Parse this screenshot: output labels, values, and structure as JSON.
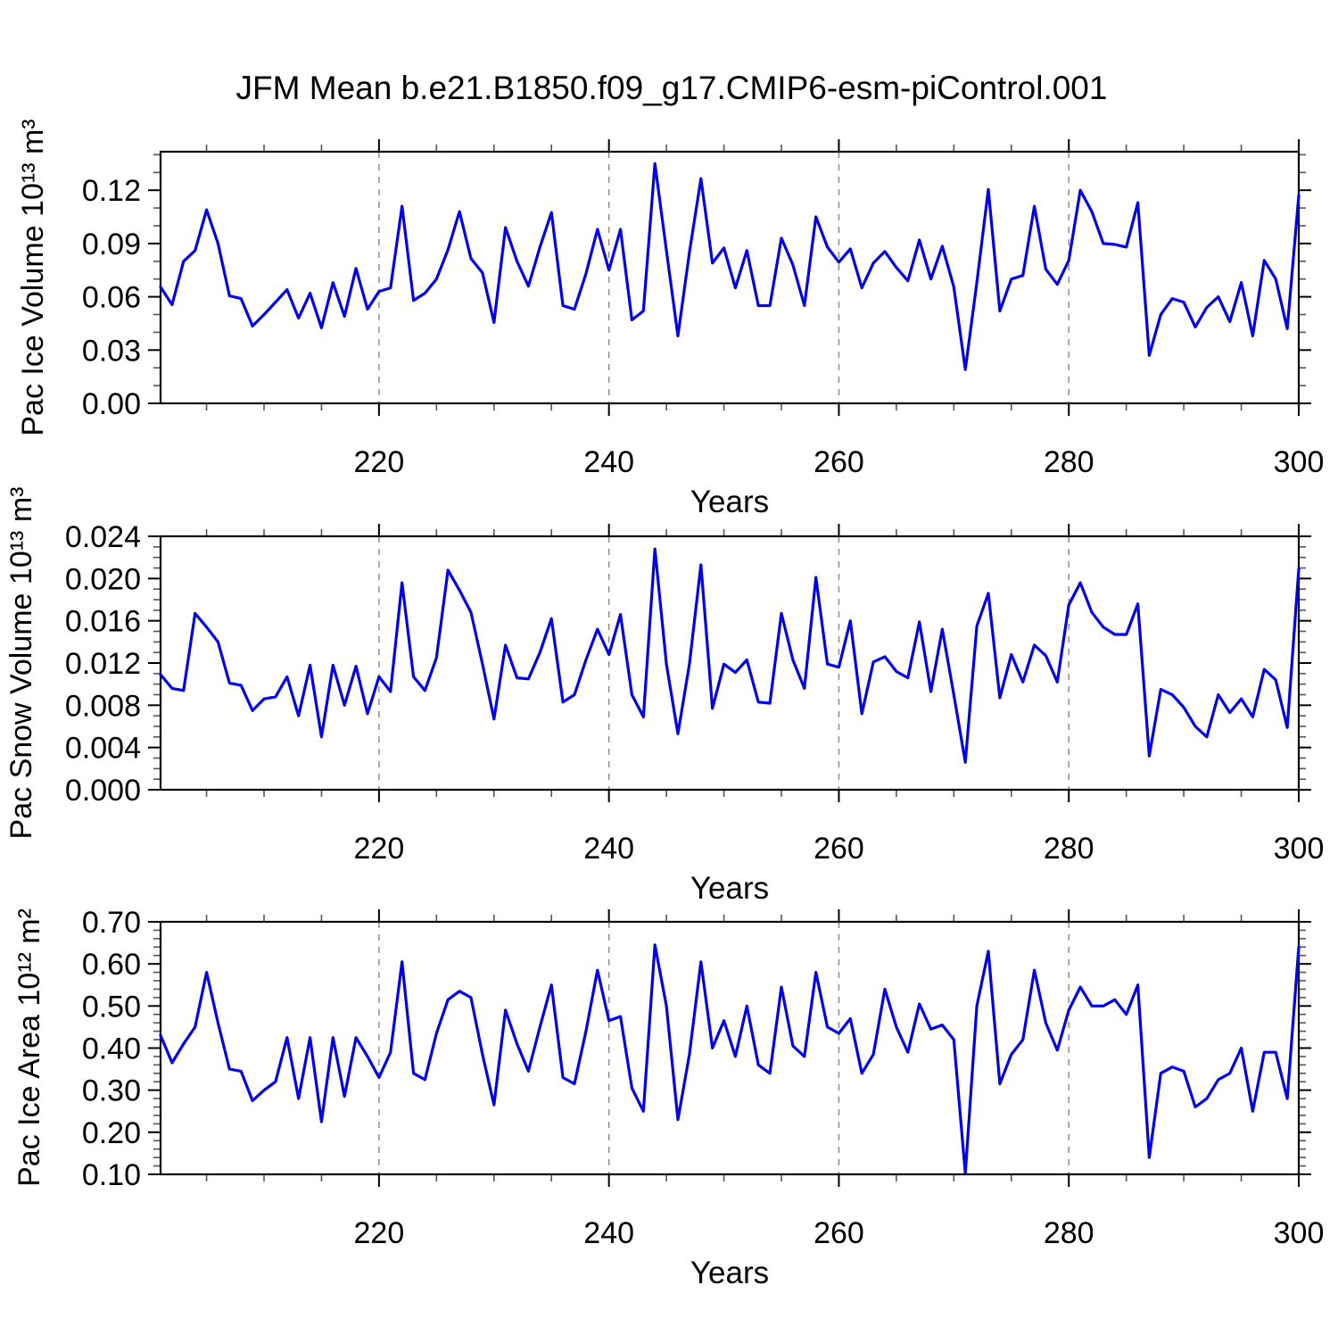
{
  "title": "JFM Mean b.e21.B1850.f09_g17.CMIP6-esm-piControl.001",
  "line_color": "#0000EE",
  "grid_color": "#888888",
  "chart_data": [
    {
      "type": "line",
      "panel": "pac-ice-volume",
      "ylabel": "Pac Ice Volume 10¹³ m³",
      "xlabel": "Years",
      "legend": "none",
      "grid": "vertical-dashed",
      "xlim": [
        201,
        300
      ],
      "ylim": [
        0,
        0.1417
      ],
      "x_major_ticks": [
        220,
        240,
        260,
        280,
        300
      ],
      "x_minor_step": 5,
      "y_major_ticks": [
        0,
        0.03,
        0.06,
        0.09,
        0.12
      ],
      "y_tick_labels": [
        "0.00",
        "0.03",
        "0.06",
        "0.09",
        "0.12"
      ],
      "y_minor_step": 0.01,
      "gridlines_at": [
        220,
        240,
        260,
        280
      ],
      "x_start": 201,
      "values": [
        0.0655,
        0.0555,
        0.08,
        0.086,
        0.109,
        0.09,
        0.0605,
        0.059,
        0.0435,
        0.05,
        0.057,
        0.064,
        0.048,
        0.062,
        0.0425,
        0.068,
        0.049,
        0.076,
        0.053,
        0.063,
        0.065,
        0.111,
        0.058,
        0.062,
        0.07,
        0.0865,
        0.108,
        0.0815,
        0.0735,
        0.0455,
        0.099,
        0.08,
        0.066,
        0.088,
        0.1075,
        0.055,
        0.053,
        0.073,
        0.098,
        0.075,
        0.098,
        0.047,
        0.052,
        0.135,
        0.086,
        0.038,
        0.085,
        0.1265,
        0.079,
        0.0875,
        0.065,
        0.086,
        0.055,
        0.055,
        0.093,
        0.078,
        0.055,
        0.105,
        0.088,
        0.0795,
        0.087,
        0.065,
        0.079,
        0.0855,
        0.0765,
        0.069,
        0.092,
        0.07,
        0.0885,
        0.0655,
        0.019,
        0.068,
        0.1205,
        0.052,
        0.07,
        0.072,
        0.111,
        0.0755,
        0.067,
        0.0805,
        0.12,
        0.108,
        0.09,
        0.0895,
        0.088,
        0.113,
        0.027,
        0.05,
        0.059,
        0.057,
        0.043,
        0.054,
        0.06,
        0.046,
        0.068,
        0.038,
        0.0805,
        0.07,
        0.042,
        0.117
      ]
    },
    {
      "type": "line",
      "panel": "pac-snow-volume",
      "ylabel": "Pac Snow Volume 10¹³ m³",
      "xlabel": "Years",
      "legend": "none",
      "grid": "vertical-dashed",
      "xlim": [
        201,
        300
      ],
      "ylim": [
        0,
        0.024
      ],
      "x_major_ticks": [
        220,
        240,
        260,
        280,
        300
      ],
      "x_minor_step": 5,
      "y_major_ticks": [
        0,
        0.004,
        0.008,
        0.012,
        0.016,
        0.02,
        0.024
      ],
      "y_tick_labels": [
        "0.000",
        "0.004",
        "0.008",
        "0.012",
        "0.016",
        "0.020",
        "0.024"
      ],
      "y_minor_step": 0.001,
      "gridlines_at": [
        220,
        240,
        260,
        280
      ],
      "x_start": 201,
      "values": [
        0.0109,
        0.0096,
        0.0094,
        0.0167,
        0.0154,
        0.014,
        0.0101,
        0.0099,
        0.0075,
        0.0086,
        0.0088,
        0.0107,
        0.007,
        0.0118,
        0.005,
        0.0118,
        0.008,
        0.0117,
        0.0072,
        0.0107,
        0.0093,
        0.0196,
        0.0107,
        0.0094,
        0.0125,
        0.0208,
        0.0189,
        0.0168,
        0.0119,
        0.0067,
        0.0137,
        0.0106,
        0.0105,
        0.013,
        0.0162,
        0.0083,
        0.009,
        0.0123,
        0.0152,
        0.0128,
        0.0166,
        0.009,
        0.0069,
        0.0228,
        0.0119,
        0.0053,
        0.0119,
        0.0213,
        0.0077,
        0.0119,
        0.0111,
        0.0123,
        0.0083,
        0.0082,
        0.0167,
        0.0123,
        0.0096,
        0.0201,
        0.0119,
        0.0116,
        0.016,
        0.0072,
        0.0121,
        0.0126,
        0.0112,
        0.0106,
        0.0159,
        0.0093,
        0.0152,
        0.009,
        0.0026,
        0.0155,
        0.0186,
        0.0087,
        0.0128,
        0.0102,
        0.0137,
        0.0127,
        0.0102,
        0.0175,
        0.0196,
        0.0168,
        0.0154,
        0.0147,
        0.0147,
        0.0176,
        0.0032,
        0.0095,
        0.009,
        0.0078,
        0.006,
        0.005,
        0.009,
        0.0073,
        0.0086,
        0.0069,
        0.0114,
        0.0104,
        0.0059,
        0.0209
      ]
    },
    {
      "type": "line",
      "panel": "pac-ice-area",
      "ylabel": "Pac Ice Area 10¹² m²",
      "xlabel": "Years",
      "legend": "none",
      "grid": "vertical-dashed",
      "xlim": [
        201,
        300
      ],
      "ylim": [
        0.1,
        0.7
      ],
      "x_major_ticks": [
        220,
        240,
        260,
        280,
        300
      ],
      "x_minor_step": 5,
      "y_major_ticks": [
        0.1,
        0.2,
        0.3,
        0.4,
        0.5,
        0.6,
        0.7
      ],
      "y_tick_labels": [
        "0.10",
        "0.20",
        "0.30",
        "0.40",
        "0.50",
        "0.60",
        "0.70"
      ],
      "y_minor_step": 0.02,
      "gridlines_at": [
        220,
        240,
        260,
        280
      ],
      "x_start": 201,
      "values": [
        0.43,
        0.365,
        0.41,
        0.45,
        0.58,
        0.46,
        0.35,
        0.345,
        0.275,
        0.3,
        0.32,
        0.425,
        0.28,
        0.425,
        0.225,
        0.425,
        0.285,
        0.425,
        0.38,
        0.33,
        0.39,
        0.605,
        0.34,
        0.325,
        0.435,
        0.515,
        0.535,
        0.52,
        0.385,
        0.265,
        0.49,
        0.41,
        0.345,
        0.45,
        0.55,
        0.33,
        0.315,
        0.44,
        0.585,
        0.465,
        0.475,
        0.305,
        0.25,
        0.645,
        0.5,
        0.23,
        0.385,
        0.605,
        0.4,
        0.465,
        0.38,
        0.5,
        0.36,
        0.34,
        0.545,
        0.405,
        0.38,
        0.58,
        0.45,
        0.435,
        0.47,
        0.34,
        0.385,
        0.54,
        0.45,
        0.39,
        0.505,
        0.445,
        0.455,
        0.42,
        0.102,
        0.5,
        0.63,
        0.315,
        0.385,
        0.42,
        0.585,
        0.46,
        0.395,
        0.49,
        0.545,
        0.5,
        0.5,
        0.515,
        0.48,
        0.55,
        0.14,
        0.34,
        0.355,
        0.345,
        0.26,
        0.28,
        0.325,
        0.34,
        0.4,
        0.25,
        0.39,
        0.39,
        0.28,
        0.64
      ]
    }
  ]
}
